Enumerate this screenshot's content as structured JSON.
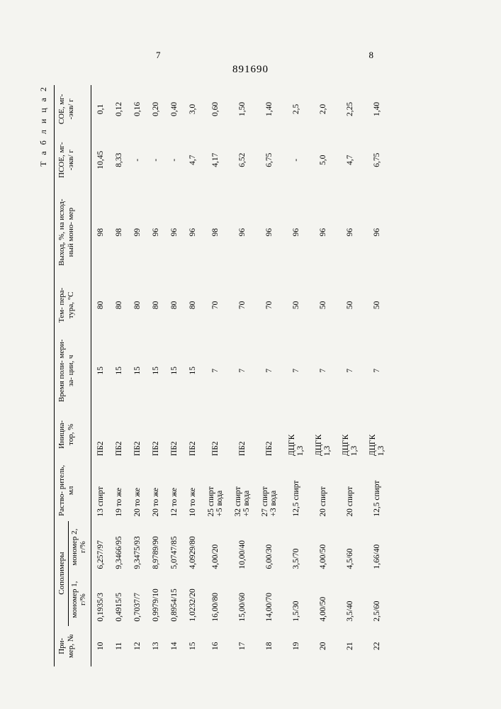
{
  "header": {
    "left_page": "7",
    "right_page": "8",
    "doc_number": "891690",
    "table_label": "Т а б л и ц а 2"
  },
  "columns": {
    "c0": "При-\nмер,\n№",
    "c1_group": "Сополимеры",
    "c1a": "мономер\n1,\nг/%",
    "c1b": "мономер\n2,\nг/%",
    "c2": "Раство-\nритель,\nмл",
    "c3": "Инициа-\nтор,\n%",
    "c4": "Время\nполи-\nмери-\nза-\nции,\nч",
    "c5": "Тем-\nпера-\nтура,\n°С",
    "c6": "Выход,\n%, на\nисход-\nный\nмоно-\nмер",
    "c7": "ПСОЕ,\nмг-\n-экв/\nг",
    "c8": "СОЕ,\nмг-\n-экв/\nг"
  },
  "rows": [
    {
      "n": "10",
      "m1": "0,1935/3",
      "m2": "6,257/97",
      "sol": "13 спирт",
      "ini": "ПБ2",
      "t": "15",
      "T": "80",
      "y": "98",
      "p": "10,45",
      "s": "0,1"
    },
    {
      "n": "11",
      "m1": "0,4915/5",
      "m2": "9,3466/95",
      "sol": "19 то же",
      "ini": "ПБ2",
      "t": "15",
      "T": "80",
      "y": "98",
      "p": "8,33",
      "s": "0,12"
    },
    {
      "n": "12",
      "m1": "0,7037/7",
      "m2": "9,3475/93",
      "sol": "20 то же",
      "ini": "ПБ2",
      "t": "15",
      "T": "80",
      "y": "99",
      "p": "-",
      "s": "0,16"
    },
    {
      "n": "13",
      "m1": "0,9979/10",
      "m2": "8,9789/90",
      "sol": "20 то же",
      "ini": "ПБ2",
      "t": "15",
      "T": "80",
      "y": "96",
      "p": "-",
      "s": "0,20"
    },
    {
      "n": "14",
      "m1": "0,8954/15",
      "m2": "5,0747/85",
      "sol": "12 то же",
      "ini": "ПБ2",
      "t": "15",
      "T": "80",
      "y": "96",
      "p": "-",
      "s": "0,40"
    },
    {
      "n": "15",
      "m1": "1,0232/20",
      "m2": "4,0929/80",
      "sol": "10 то же",
      "ini": "ПБ2",
      "t": "15",
      "T": "80",
      "y": "96",
      "p": "4,7",
      "s": "3,0"
    },
    {
      "n": "16",
      "m1": "16,00/80",
      "m2": "4,00/20",
      "sol": "25 спирт\n+5 вода",
      "ini": "ПБ2",
      "t": "7",
      "T": "70",
      "y": "98",
      "p": "4,17",
      "s": "0,60"
    },
    {
      "n": "17",
      "m1": "15,00/60",
      "m2": "10,00/40",
      "sol": "32 спирт\n+5 вода",
      "ini": "ПБ2",
      "t": "7",
      "T": "70",
      "y": "96",
      "p": "6,52",
      "s": "1,50"
    },
    {
      "n": "18",
      "m1": "14,00/70",
      "m2": "6,00/30",
      "sol": "27 спирт\n+3 вода",
      "ini": "ПБ2",
      "t": "7",
      "T": "70",
      "y": "96",
      "p": "6,75",
      "s": "1,40"
    },
    {
      "n": "19",
      "m1": "1,5/30",
      "m2": "3,5/70",
      "sol": "12,5 спирт",
      "ini": "ДЦГК\n1,3",
      "t": "7",
      "T": "50",
      "y": "96",
      "p": "-",
      "s": "2,5"
    },
    {
      "n": "20",
      "m1": "4,00/50",
      "m2": "4,00/50",
      "sol": "20 спирт",
      "ini": "ДЦГК\n1,3",
      "t": "7",
      "T": "50",
      "y": "96",
      "p": "5,0",
      "s": "2,0"
    },
    {
      "n": "21",
      "m1": "3,5/40",
      "m2": "4,5/60",
      "sol": "20 спирт",
      "ini": "ДЦГК\n1,3",
      "t": "7",
      "T": "50",
      "y": "96",
      "p": "4,7",
      "s": "2,25"
    },
    {
      "n": "22",
      "m1": "2,5/60",
      "m2": "1,66/40",
      "sol": "12,5 спирт",
      "ini": "ДЦГК\n1,3",
      "t": "7",
      "T": "50",
      "y": "96",
      "p": "6,75",
      "s": "1,40"
    }
  ]
}
